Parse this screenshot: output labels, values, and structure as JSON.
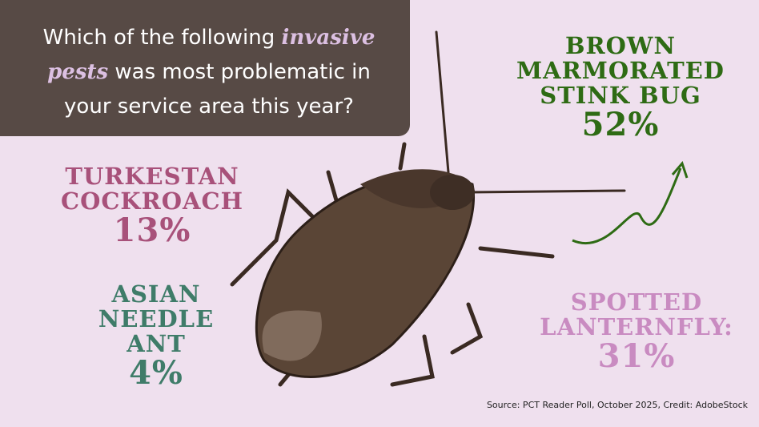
{
  "question": {
    "before": "Which of the following ",
    "accent": "invasive pests",
    "after": " was most problematic in your service area this year?"
  },
  "results": [
    {
      "id": "bmsb",
      "label": "BROWN MARMORATED STINK BUG",
      "percent": "52%",
      "color": "#2e6b14"
    },
    {
      "id": "tc",
      "label": "TURKESTAN COCKROACH",
      "percent": "13%",
      "color": "#a8517a"
    },
    {
      "id": "an",
      "label": "ASIAN NEEDLE ANT",
      "percent": "4%",
      "color": "#3f7c69"
    },
    {
      "id": "sl",
      "label": "SPOTTED LANTERNFLY:",
      "percent": "31%",
      "color": "#c98bc1"
    }
  ],
  "source": "Source: PCT Reader Poll, October 2025, Credit: AdobeStock",
  "colors": {
    "background": "#efe0ee",
    "question_box": "#574a45",
    "accent": "#dcc0e2"
  }
}
